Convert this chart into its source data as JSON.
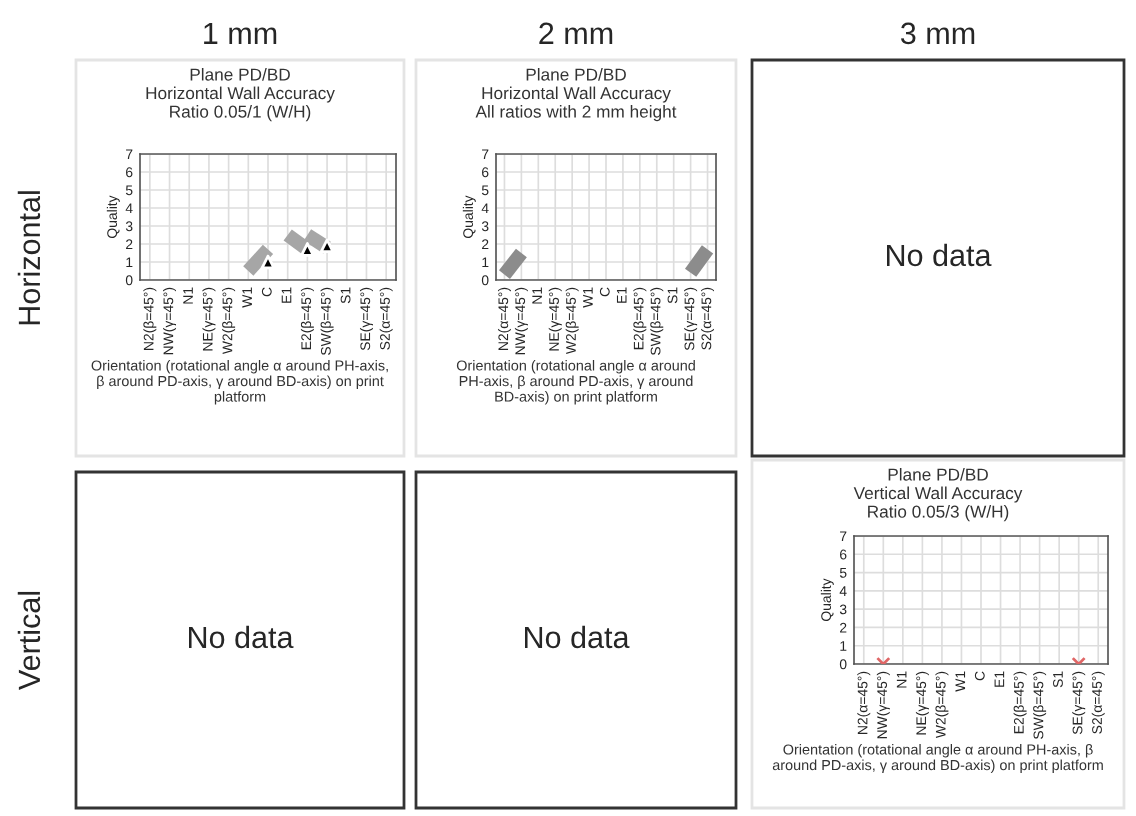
{
  "chart_data": [
    {
      "type": "line",
      "title": "Plane PD/BD\nHorizontal Wall Accuracy\nRatio 0.05/1 (W/H)",
      "ylabel": "Quality",
      "xlabel": "Orientation (rotational angle α around PH-axis, β around PD-axis, γ around BD-axis) on print platform",
      "annotations": [
        "1 mm",
        "Horizontal"
      ],
      "categories": [
        "N2(β=45°)",
        "NW(γ=45°)",
        "N1",
        "NE(γ=45°)",
        "W2(β=45°)",
        "W1",
        "C",
        "E1",
        "E2(β=45°)",
        "SW(β=45°)",
        "S1",
        "SE(γ=45°)",
        "S2(α=45°)"
      ],
      "ylim": [
        0,
        7
      ],
      "yticks": [
        0,
        1,
        2,
        3,
        4,
        5,
        6,
        7
      ],
      "grid": true,
      "series": [
        {
          "color": "#a6a6a6",
          "values": [
            null,
            null,
            null,
            null,
            null,
            0.5,
            1.7,
            null,
            null,
            null,
            null,
            null,
            null
          ]
        },
        {
          "color": "#a6a6a6",
          "values": [
            null,
            null,
            null,
            null,
            null,
            null,
            null,
            2.5,
            1.7,
            null,
            null,
            null,
            null
          ]
        },
        {
          "color": "#a6a6a6",
          "values": [
            null,
            null,
            null,
            null,
            null,
            null,
            null,
            null,
            2.5,
            1.8,
            null,
            null,
            null
          ]
        },
        {
          "type": "scatter",
          "color": "#000000",
          "values": [
            null,
            null,
            null,
            null,
            null,
            null,
            1.0,
            null,
            1.7,
            1.9,
            null,
            null,
            null
          ]
        }
      ]
    },
    {
      "type": "line",
      "title": "Plane PD/BD\nHorizontal Wall Accuracy\nAll ratios with 2 mm height",
      "ylabel": "Quality",
      "xlabel": "Orientation (rotational angle α around PH-axis, β around PD-axis, γ around BD-axis) on print platform",
      "annotations": [
        "2 mm"
      ],
      "categories": [
        "N2(α=45°)",
        "NW(γ=45°)",
        "N1",
        "NE(γ=45°)",
        "W2(β=45°)",
        "W1",
        "C",
        "E1",
        "E2(β=45°)",
        "SW(β=45°)",
        "S1",
        "SE(γ=45°)",
        "S2(α=45°)"
      ],
      "ylim": [
        0,
        7
      ],
      "yticks": [
        0,
        1,
        2,
        3,
        4,
        5,
        6,
        7
      ],
      "grid": true,
      "series": [
        {
          "color": "#8c8c8c",
          "values": [
            0.3,
            1.5,
            null,
            null,
            null,
            null,
            null,
            null,
            null,
            null,
            null,
            null,
            null
          ]
        },
        {
          "color": "#8c8c8c",
          "values": [
            null,
            null,
            null,
            null,
            null,
            null,
            null,
            null,
            null,
            null,
            null,
            0.4,
            1.7
          ]
        }
      ]
    },
    {
      "type": "other",
      "annotations": [
        "3 mm",
        "No data"
      ]
    },
    {
      "type": "other",
      "annotations": [
        "Vertical",
        "No data"
      ]
    },
    {
      "type": "other",
      "annotations": [
        "No data"
      ]
    },
    {
      "type": "scatter",
      "title": "Plane PD/BD\nVertical Wall Accuracy\nRatio 0.05/3 (W/H)",
      "ylabel": "Quality",
      "xlabel": "Orientation (rotational angle α around PH-axis, β around PD-axis, γ around BD-axis) on print platform",
      "marker": "cross",
      "categories": [
        "N2(α=45°)",
        "NW(γ=45°)",
        "N1",
        "NE(γ=45°)",
        "W2(β=45°)",
        "W1",
        "C",
        "E1",
        "E2(β=45°)",
        "SW(β=45°)",
        "S1",
        "SE(γ=45°)",
        "S2(α=45°)"
      ],
      "ylim": [
        0,
        7
      ],
      "yticks": [
        0,
        1,
        2,
        3,
        4,
        5,
        6,
        7
      ],
      "grid": true,
      "series": [
        {
          "color": "#e06666",
          "values": [
            null,
            0,
            null,
            null,
            null,
            null,
            null,
            null,
            null,
            null,
            null,
            0,
            null
          ]
        }
      ]
    }
  ]
}
